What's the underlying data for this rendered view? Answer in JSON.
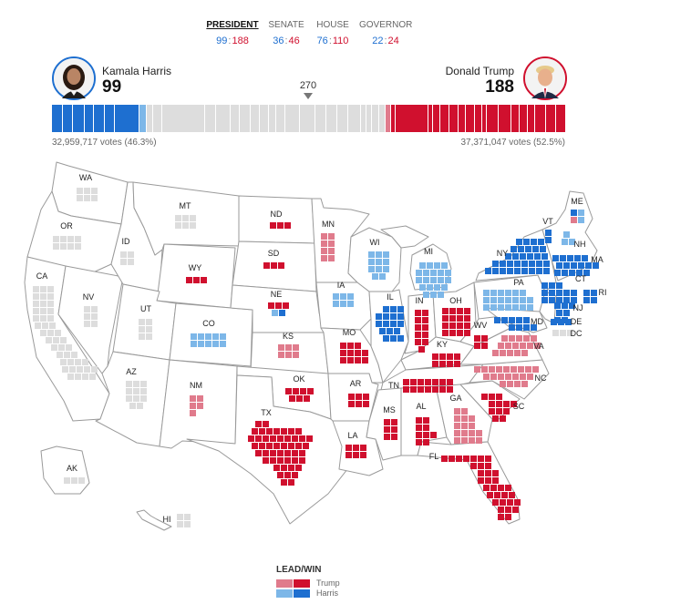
{
  "tabs": [
    {
      "label": "PRESIDENT",
      "dem": "99",
      "rep": "188",
      "active": true
    },
    {
      "label": "SENATE",
      "dem": "36",
      "rep": "46",
      "active": false
    },
    {
      "label": "HOUSE",
      "dem": "76",
      "rep": "110",
      "active": false
    },
    {
      "label": "GOVERNOR",
      "dem": "22",
      "rep": "24",
      "active": false
    }
  ],
  "harris": {
    "name": "Kamala Harris",
    "electoral_votes": "99",
    "popular": "32,959,717 votes (46.3%)"
  },
  "trump": {
    "name": "Donald Trump",
    "electoral_votes": "188",
    "popular": "37,371,047 votes (52.5%)"
  },
  "threshold": "270",
  "colors": {
    "trump_lead": "#e07b8c",
    "trump_win": "#d0102e",
    "harris_lead": "#7db7e8",
    "harris_win": "#1e6fd0",
    "no_result": "#dddddd",
    "border": "#9a9a9a"
  },
  "states": [
    {
      "abbr": "WA",
      "status": "none"
    },
    {
      "abbr": "OR",
      "status": "none"
    },
    {
      "abbr": "CA",
      "status": "none"
    },
    {
      "abbr": "NV",
      "status": "none"
    },
    {
      "abbr": "ID",
      "status": "none"
    },
    {
      "abbr": "MT",
      "status": "none"
    },
    {
      "abbr": "WY",
      "status": "trump_win"
    },
    {
      "abbr": "UT",
      "status": "none"
    },
    {
      "abbr": "AZ",
      "status": "none"
    },
    {
      "abbr": "CO",
      "status": "harris_lead"
    },
    {
      "abbr": "NM",
      "status": "trump_lead"
    },
    {
      "abbr": "ND",
      "status": "trump_win"
    },
    {
      "abbr": "SD",
      "status": "trump_win"
    },
    {
      "abbr": "NE",
      "status": "split"
    },
    {
      "abbr": "KS",
      "status": "trump_lead"
    },
    {
      "abbr": "OK",
      "status": "trump_win"
    },
    {
      "abbr": "TX",
      "status": "trump_win"
    },
    {
      "abbr": "MN",
      "status": "trump_lead"
    },
    {
      "abbr": "IA",
      "status": "harris_lead"
    },
    {
      "abbr": "MO",
      "status": "trump_win"
    },
    {
      "abbr": "AR",
      "status": "trump_win"
    },
    {
      "abbr": "LA",
      "status": "trump_win"
    },
    {
      "abbr": "WI",
      "status": "harris_lead"
    },
    {
      "abbr": "IL",
      "status": "harris_win"
    },
    {
      "abbr": "MI",
      "status": "harris_lead"
    },
    {
      "abbr": "IN",
      "status": "trump_win"
    },
    {
      "abbr": "OH",
      "status": "trump_win"
    },
    {
      "abbr": "KY",
      "status": "trump_win"
    },
    {
      "abbr": "TN",
      "status": "trump_win"
    },
    {
      "abbr": "MS",
      "status": "trump_win"
    },
    {
      "abbr": "AL",
      "status": "trump_win"
    },
    {
      "abbr": "GA",
      "status": "trump_lead"
    },
    {
      "abbr": "FL",
      "status": "trump_win"
    },
    {
      "abbr": "SC",
      "status": "trump_win"
    },
    {
      "abbr": "NC",
      "status": "trump_lead"
    },
    {
      "abbr": "VA",
      "status": "trump_lead"
    },
    {
      "abbr": "WV",
      "status": "trump_win"
    },
    {
      "abbr": "PA",
      "status": "harris_lead"
    },
    {
      "abbr": "NY",
      "status": "harris_win"
    },
    {
      "abbr": "VT",
      "status": "harris_win"
    },
    {
      "abbr": "NH",
      "status": "harris_lead"
    },
    {
      "abbr": "ME",
      "status": "split"
    },
    {
      "abbr": "MA",
      "status": "harris_win"
    },
    {
      "abbr": "RI",
      "status": "harris_win"
    },
    {
      "abbr": "CT",
      "status": "harris_win"
    },
    {
      "abbr": "NJ",
      "status": "harris_win"
    },
    {
      "abbr": "DE",
      "status": "harris_win"
    },
    {
      "abbr": "MD",
      "status": "harris_win"
    },
    {
      "abbr": "DC",
      "status": "none"
    },
    {
      "abbr": "AK",
      "status": "none"
    },
    {
      "abbr": "HI",
      "status": "none"
    }
  ],
  "legend": {
    "title": "LEAD/WIN",
    "trump": "Trump",
    "harris": "Harris"
  }
}
